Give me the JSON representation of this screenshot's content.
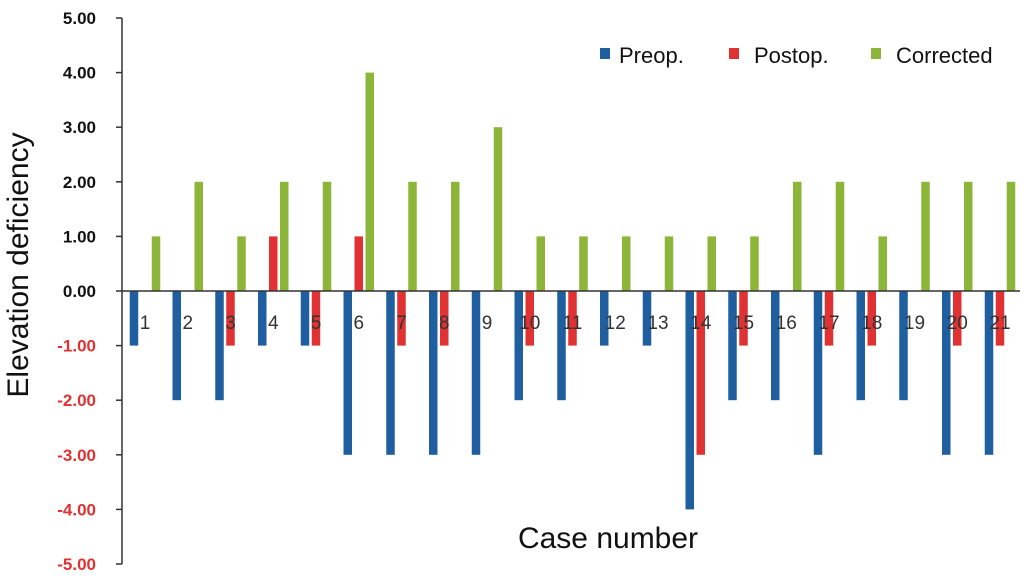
{
  "chart_data": {
    "type": "bar",
    "xlabel": "Case number",
    "ylabel": "Elevation deficiency",
    "ylim": [
      -5,
      5
    ],
    "y_ticks": [
      "5.00",
      "4.00",
      "3.00",
      "2.00",
      "1.00",
      "0.00",
      "-1.00",
      "-2.00",
      "-3.00",
      "-4.00",
      "-5.00"
    ],
    "categories": [
      "1",
      "2",
      "3",
      "4",
      "5",
      "6",
      "7",
      "8",
      "9",
      "10",
      "11",
      "12",
      "13",
      "14",
      "15",
      "16",
      "17",
      "18",
      "19",
      "20",
      "21"
    ],
    "series": [
      {
        "name": "Preop.",
        "color": "#1f5fa0",
        "values": [
          -1,
          -2,
          -2,
          -1,
          -1,
          -3,
          -3,
          -3,
          -3,
          -2,
          -2,
          -1,
          -1,
          -4,
          -2,
          -2,
          -3,
          -2,
          -2,
          -3,
          -3
        ]
      },
      {
        "name": "Postop.",
        "color": "#e03232",
        "values": [
          0,
          0,
          -1,
          1,
          -1,
          1,
          -1,
          -1,
          0,
          -1,
          -1,
          0,
          0,
          -3,
          -1,
          0,
          -1,
          -1,
          0,
          -1,
          -1
        ]
      },
      {
        "name": "Corrected",
        "color": "#8db53a",
        "values": [
          1,
          2,
          1,
          2,
          2,
          4,
          2,
          2,
          3,
          1,
          1,
          1,
          1,
          1,
          1,
          2,
          2,
          1,
          2,
          2,
          2
        ]
      }
    ],
    "legend_position": "top-right",
    "grid": false,
    "colors": {
      "positive_tick": "#111111",
      "negative_tick": "#e03232",
      "axis": "#333333"
    }
  }
}
